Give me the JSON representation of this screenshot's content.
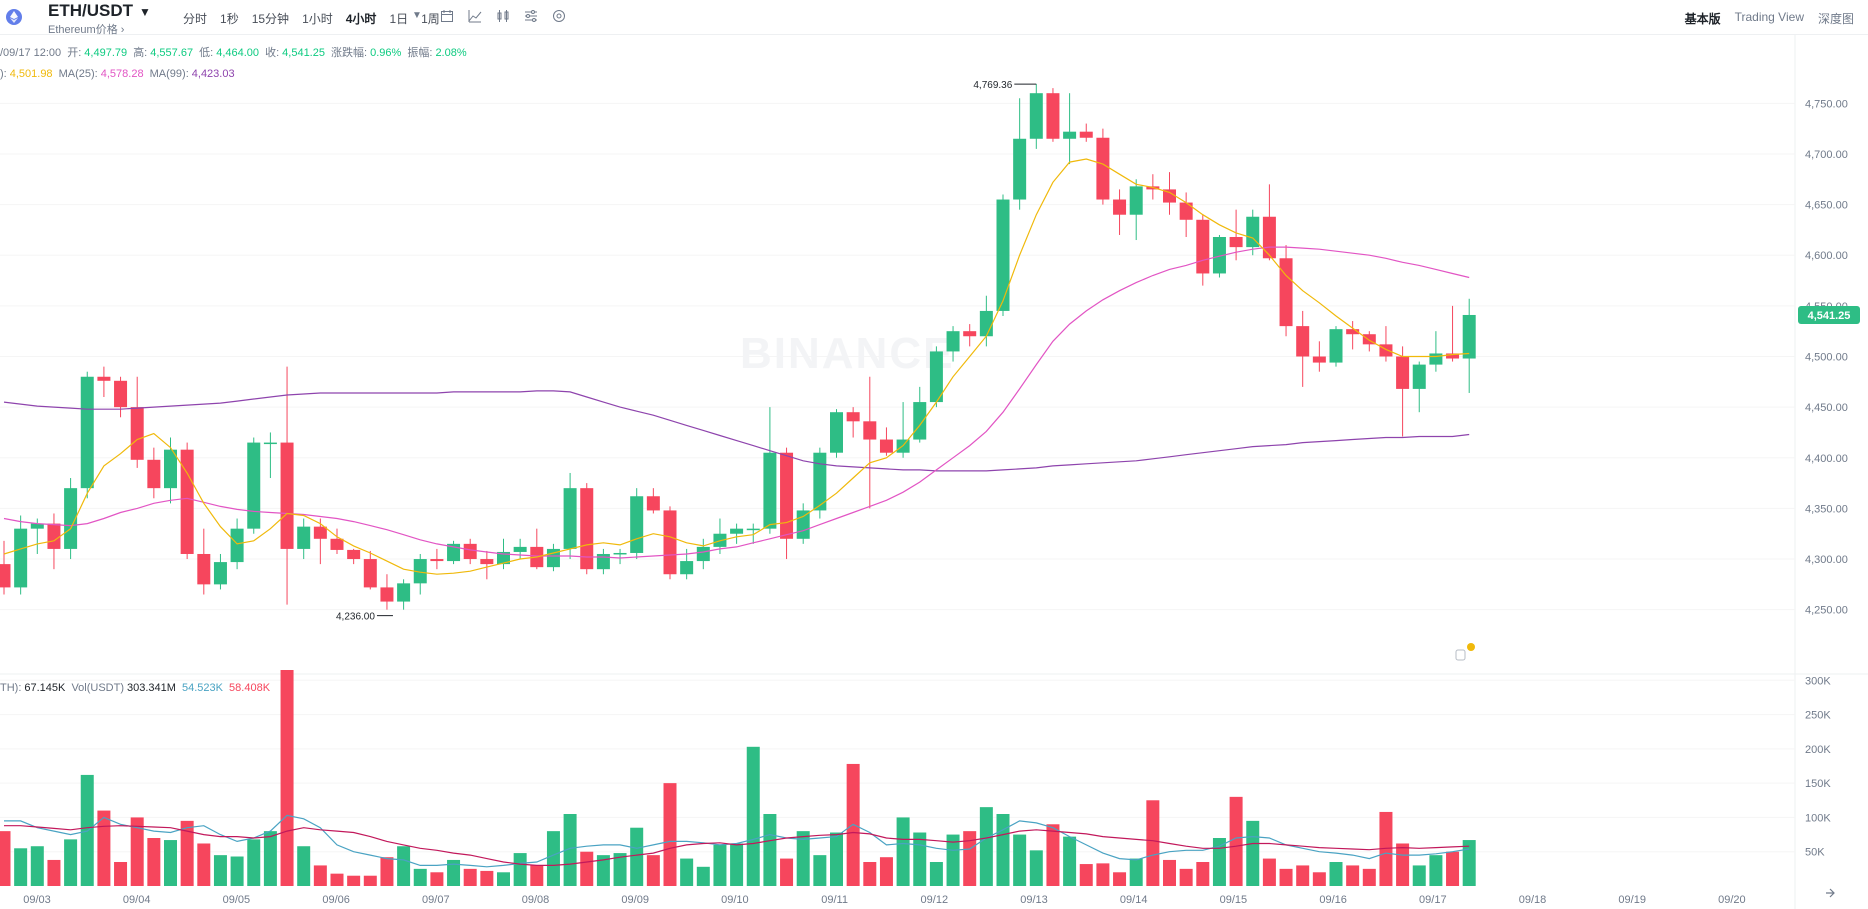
{
  "header": {
    "symbol": "ETH/USDT",
    "subtitle": "Ethereum价格 ›",
    "intervals": [
      "分时",
      "1秒",
      "15分钟",
      "1小时",
      "4小时",
      "1日",
      "1周"
    ],
    "active_interval": "4小时",
    "views": [
      "基本版",
      "Trading View",
      "深度图"
    ],
    "active_view": "基本版"
  },
  "ohlc": {
    "time": "/09/17 12:00",
    "open_label": "开:",
    "open": "4,497.79",
    "high_label": "高:",
    "high": "4,557.67",
    "low_label": "低:",
    "low": "4,464.00",
    "close_label": "收:",
    "close": "4,541.25",
    "change_label": "涨跌幅:",
    "change": "0.96%",
    "amp_label": "振幅:",
    "amp": "2.08%"
  },
  "ma": {
    "ma7_label": "):",
    "ma7": "4,501.98",
    "ma25_label": "MA(25):",
    "ma25": "4,578.28",
    "ma99_label": "MA(99):",
    "ma99": "4,423.03"
  },
  "volume_info": {
    "eth_label": "TH):",
    "eth": "67.145K",
    "usdt_label": "Vol(USDT)",
    "usdt": "303.341M",
    "ma5": "54.523K",
    "ma10": "58.408K"
  },
  "colors": {
    "up": "#2ebd85",
    "down": "#f6465d",
    "ma7": "#f0b90b",
    "ma25": "#e255c4",
    "ma99": "#8e44ad",
    "vol_ma5": "#4aa3c3",
    "vol_ma10": "#c2185b",
    "price_tag": "#2ebd85"
  },
  "chart_data": {
    "type": "candlestick",
    "price_axis": {
      "ticks": [
        "4,750.00",
        "4,700.00",
        "4,650.00",
        "4,600.00",
        "4,550.00",
        "4,500.00",
        "4,450.00",
        "4,400.00",
        "4,350.00",
        "4,300.00",
        "4,250.00"
      ],
      "ylim": [
        4225,
        4775
      ]
    },
    "volume_axis": {
      "ticks": [
        "300K",
        "250K",
        "200K",
        "150K",
        "100K",
        "50K"
      ],
      "ylim": [
        0,
        315
      ]
    },
    "x_labels": [
      "09/03",
      "09/04",
      "09/05",
      "09/06",
      "09/07",
      "09/08",
      "09/09",
      "09/10",
      "09/11",
      "09/12",
      "09/13",
      "09/14",
      "09/15",
      "09/16",
      "09/17",
      "09/18",
      "09/19",
      "09/20"
    ],
    "current_price": "4,541.25",
    "high_marker": "4,769.36",
    "low_marker": "4,236.00",
    "candles": [
      [
        4295,
        4318,
        4265,
        4272
      ],
      [
        4272,
        4343,
        4265,
        4330
      ],
      [
        4330,
        4340,
        4305,
        4335
      ],
      [
        4335,
        4345,
        4290,
        4310
      ],
      [
        4310,
        4380,
        4300,
        4370
      ],
      [
        4370,
        4485,
        4360,
        4480
      ],
      [
        4480,
        4490,
        4460,
        4476
      ],
      [
        4476,
        4480,
        4440,
        4450
      ],
      [
        4450,
        4480,
        4390,
        4398
      ],
      [
        4398,
        4410,
        4360,
        4370
      ],
      [
        4370,
        4420,
        4355,
        4408
      ],
      [
        4408,
        4415,
        4300,
        4305
      ],
      [
        4305,
        4330,
        4265,
        4275
      ],
      [
        4275,
        4305,
        4270,
        4297
      ],
      [
        4297,
        4340,
        4290,
        4330
      ],
      [
        4330,
        4420,
        4325,
        4415
      ],
      [
        4415,
        4425,
        4380,
        4415
      ],
      [
        4415,
        4490,
        4255,
        4310
      ],
      [
        4310,
        4340,
        4300,
        4332
      ],
      [
        4332,
        4340,
        4295,
        4320
      ],
      [
        4320,
        4330,
        4305,
        4309
      ],
      [
        4309,
        4310,
        4295,
        4300
      ],
      [
        4300,
        4308,
        4270,
        4272
      ],
      [
        4272,
        4285,
        4250,
        4258
      ],
      [
        4258,
        4280,
        4250,
        4276
      ],
      [
        4276,
        4305,
        4265,
        4300
      ],
      [
        4300,
        4310,
        4290,
        4298
      ],
      [
        4298,
        4318,
        4295,
        4315
      ],
      [
        4315,
        4320,
        4295,
        4300
      ],
      [
        4300,
        4308,
        4280,
        4295
      ],
      [
        4295,
        4320,
        4290,
        4307
      ],
      [
        4307,
        4320,
        4300,
        4312
      ],
      [
        4312,
        4330,
        4290,
        4292
      ],
      [
        4292,
        4315,
        4288,
        4310
      ],
      [
        4310,
        4385,
        4300,
        4370
      ],
      [
        4370,
        4375,
        4285,
        4290
      ],
      [
        4290,
        4310,
        4285,
        4305
      ],
      [
        4305,
        4310,
        4295,
        4306
      ],
      [
        4306,
        4370,
        4300,
        4362
      ],
      [
        4362,
        4370,
        4345,
        4348
      ],
      [
        4348,
        4352,
        4280,
        4285
      ],
      [
        4285,
        4310,
        4280,
        4298
      ],
      [
        4298,
        4320,
        4290,
        4312
      ],
      [
        4312,
        4340,
        4305,
        4325
      ],
      [
        4325,
        4335,
        4315,
        4330
      ],
      [
        4330,
        4335,
        4315,
        4330
      ],
      [
        4330,
        4450,
        4325,
        4405
      ],
      [
        4405,
        4410,
        4300,
        4320
      ],
      [
        4320,
        4355,
        4315,
        4348
      ],
      [
        4348,
        4410,
        4340,
        4405
      ],
      [
        4405,
        4448,
        4400,
        4445
      ],
      [
        4445,
        4450,
        4420,
        4436
      ],
      [
        4436,
        4480,
        4350,
        4418
      ],
      [
        4418,
        4430,
        4402,
        4405
      ],
      [
        4405,
        4455,
        4400,
        4418
      ],
      [
        4418,
        4470,
        4415,
        4455
      ],
      [
        4455,
        4510,
        4450,
        4505
      ],
      [
        4505,
        4530,
        4495,
        4525
      ],
      [
        4525,
        4532,
        4510,
        4520
      ],
      [
        4520,
        4560,
        4510,
        4545
      ],
      [
        4545,
        4660,
        4540,
        4655
      ],
      [
        4655,
        4755,
        4645,
        4715
      ],
      [
        4715,
        4769,
        4705,
        4760
      ],
      [
        4760,
        4765,
        4712,
        4715
      ],
      [
        4715,
        4760,
        4690,
        4722
      ],
      [
        4722,
        4730,
        4712,
        4716
      ],
      [
        4716,
        4725,
        4650,
        4655
      ],
      [
        4655,
        4665,
        4620,
        4640
      ],
      [
        4640,
        4675,
        4615,
        4668
      ],
      [
        4668,
        4680,
        4655,
        4665
      ],
      [
        4665,
        4682,
        4640,
        4652
      ],
      [
        4652,
        4662,
        4618,
        4635
      ],
      [
        4635,
        4640,
        4570,
        4582
      ],
      [
        4582,
        4620,
        4578,
        4618
      ],
      [
        4618,
        4645,
        4595,
        4608
      ],
      [
        4608,
        4645,
        4600,
        4638
      ],
      [
        4638,
        4670,
        4595,
        4597
      ],
      [
        4597,
        4610,
        4520,
        4530
      ],
      [
        4530,
        4545,
        4470,
        4500
      ],
      [
        4500,
        4515,
        4485,
        4494
      ],
      [
        4494,
        4530,
        4490,
        4527
      ],
      [
        4527,
        4535,
        4507,
        4522
      ],
      [
        4522,
        4525,
        4505,
        4512
      ],
      [
        4512,
        4530,
        4495,
        4500
      ],
      [
        4500,
        4510,
        4421,
        4468
      ],
      [
        4468,
        4495,
        4445,
        4492
      ],
      [
        4492,
        4525,
        4485,
        4503
      ],
      [
        4503,
        4550,
        4495,
        4498
      ],
      [
        4498,
        4557,
        4464,
        4541
      ]
    ],
    "ma7": [
      4305,
      4310,
      4315,
      4318,
      4330,
      4365,
      4392,
      4404,
      4418,
      4424,
      4410,
      4385,
      4355,
      4332,
      4315,
      4318,
      4330,
      4345,
      4343,
      4335,
      4322,
      4313,
      4306,
      4298,
      4290,
      4287,
      4285,
      4286,
      4288,
      4292,
      4296,
      4300,
      4302,
      4306,
      4310,
      4314,
      4316,
      4314,
      4320,
      4325,
      4322,
      4316,
      4313,
      4318,
      4322,
      4324,
      4334,
      4336,
      4342,
      4353,
      4365,
      4380,
      4395,
      4400,
      4412,
      4432,
      4455,
      4480,
      4500,
      4520,
      4555,
      4600,
      4640,
      4672,
      4692,
      4695,
      4690,
      4680,
      4670,
      4667,
      4662,
      4652,
      4640,
      4630,
      4622,
      4617,
      4600,
      4580,
      4565,
      4553,
      4540,
      4528,
      4516,
      4507,
      4500,
      4500,
      4500,
      4502,
      4503
    ],
    "ma25": [
      4340,
      4337,
      4335,
      4334,
      4333,
      4335,
      4340,
      4346,
      4350,
      4355,
      4358,
      4360,
      4356,
      4352,
      4349,
      4347,
      4346,
      4345,
      4344,
      4342,
      4340,
      4337,
      4333,
      4329,
      4324,
      4319,
      4315,
      4312,
      4309,
      4307,
      4305,
      4304,
      4303,
      4303,
      4303,
      4302,
      4302,
      4301,
      4302,
      4303,
      4304,
      4305,
      4307,
      4310,
      4312,
      4316,
      4320,
      4324,
      4328,
      4334,
      4340,
      4346,
      4352,
      4358,
      4366,
      4376,
      4388,
      4400,
      4412,
      4426,
      4445,
      4468,
      4492,
      4515,
      4532,
      4545,
      4556,
      4565,
      4573,
      4580,
      4586,
      4590,
      4595,
      4599,
      4603,
      4606,
      4608,
      4608,
      4607,
      4606,
      4604,
      4602,
      4600,
      4597,
      4593,
      4590,
      4586,
      4582,
      4578
    ],
    "ma99": [
      4455,
      4453,
      4451,
      4450,
      4449,
      4448,
      4448,
      4448,
      4449,
      4450,
      4451,
      4452,
      4453,
      4454,
      4456,
      4458,
      4460,
      4462,
      4463,
      4464,
      4464,
      4464,
      4464,
      4464,
      4464,
      4464,
      4464,
      4465,
      4465,
      4465,
      4465,
      4465,
      4466,
      4466,
      4465,
      4460,
      4455,
      4450,
      4446,
      4442,
      4437,
      4432,
      4427,
      4422,
      4417,
      4412,
      4407,
      4402,
      4397,
      4394,
      4392,
      4391,
      4390,
      4389,
      4388,
      4388,
      4387,
      4387,
      4387,
      4387,
      4388,
      4389,
      4390,
      4392,
      4393,
      4394,
      4395,
      4396,
      4397,
      4399,
      4401,
      4403,
      4405,
      4407,
      4409,
      4411,
      4412,
      4413,
      4415,
      4416,
      4417,
      4418,
      4419,
      4420,
      4420,
      4421,
      4421,
      4421,
      4423
    ],
    "volumes": [
      80,
      55,
      58,
      38,
      68,
      162,
      110,
      35,
      100,
      70,
      67,
      95,
      62,
      45,
      43,
      68,
      80,
      315,
      58,
      30,
      18,
      15,
      15,
      42,
      58,
      25,
      20,
      38,
      25,
      22,
      20,
      48,
      30,
      80,
      105,
      50,
      45,
      48,
      85,
      45,
      150,
      40,
      28,
      60,
      62,
      203,
      105,
      40,
      80,
      45,
      78,
      178,
      35,
      42,
      100,
      78,
      35,
      75,
      80,
      115,
      105,
      75,
      52,
      90,
      72,
      32,
      33,
      20,
      40,
      125,
      38,
      25,
      35,
      70,
      130,
      95,
      40,
      25,
      30,
      20,
      35,
      30,
      25,
      108,
      62,
      30,
      45,
      50,
      67
    ],
    "vol_ma5": [
      95,
      95,
      85,
      80,
      75,
      80,
      100,
      90,
      85,
      80,
      78,
      85,
      88,
      75,
      65,
      70,
      80,
      103,
      98,
      85,
      60,
      50,
      45,
      40,
      38,
      30,
      30,
      32,
      30,
      28,
      30,
      33,
      35,
      45,
      55,
      58,
      60,
      60,
      55,
      60,
      65,
      65,
      63,
      60,
      62,
      68,
      75,
      70,
      68,
      70,
      72,
      90,
      78,
      60,
      62,
      60,
      55,
      52,
      54,
      70,
      82,
      95,
      92,
      85,
      72,
      60,
      48,
      40,
      38,
      45,
      50,
      52,
      52,
      58,
      70,
      72,
      70,
      60,
      55,
      50,
      48,
      45,
      40,
      48,
      45,
      45,
      47,
      50,
      54
    ],
    "vol_ma10": [
      88,
      88,
      86,
      84,
      82,
      85,
      87,
      88,
      87,
      86,
      85,
      80,
      75,
      72,
      72,
      70,
      72,
      80,
      85,
      82,
      80,
      78,
      72,
      65,
      60,
      55,
      52,
      48,
      45,
      40,
      35,
      32,
      30,
      30,
      32,
      35,
      38,
      42,
      45,
      48,
      55,
      60,
      62,
      63,
      60,
      62,
      66,
      70,
      72,
      74,
      75,
      78,
      76,
      70,
      68,
      68,
      66,
      64,
      66,
      70,
      75,
      80,
      82,
      80,
      78,
      76,
      72,
      70,
      68,
      66,
      62,
      58,
      55,
      55,
      58,
      62,
      62,
      60,
      58,
      56,
      55,
      54,
      53,
      55,
      56,
      55,
      56,
      57,
      58
    ]
  }
}
